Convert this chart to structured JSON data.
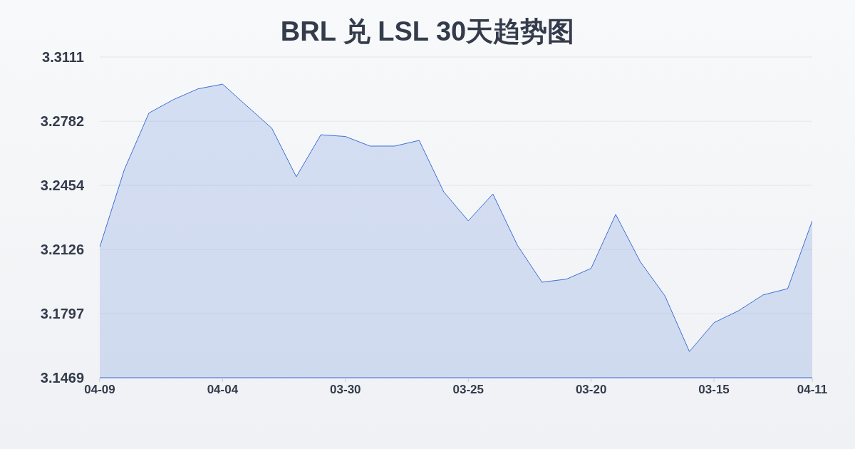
{
  "chart_data": {
    "type": "area",
    "title": "BRL 兑 LSL 30天趋势图",
    "categories": [
      "04-09",
      null,
      null,
      null,
      null,
      "04-04",
      null,
      null,
      null,
      null,
      "03-30",
      null,
      null,
      null,
      null,
      "03-25",
      null,
      null,
      null,
      null,
      "03-20",
      null,
      null,
      null,
      null,
      "03-15",
      null,
      null,
      null,
      "04-11"
    ],
    "values": [
      3.2138,
      3.2534,
      3.2824,
      3.2893,
      3.2948,
      3.2972,
      3.2859,
      3.2747,
      3.2498,
      3.2713,
      3.2704,
      3.2655,
      3.2655,
      3.2684,
      3.2421,
      3.2272,
      3.241,
      3.2147,
      3.1958,
      3.1974,
      3.2029,
      3.2305,
      3.2063,
      3.1889,
      3.1603,
      3.1751,
      3.1812,
      3.1893,
      3.1925,
      3.2272
    ],
    "color": "#3b6fd4",
    "ylim": [
      3.1469,
      3.3111
    ],
    "yticks": [
      3.1469,
      3.1797,
      3.2126,
      3.2454,
      3.2782,
      3.3111
    ],
    "grid": "y"
  }
}
